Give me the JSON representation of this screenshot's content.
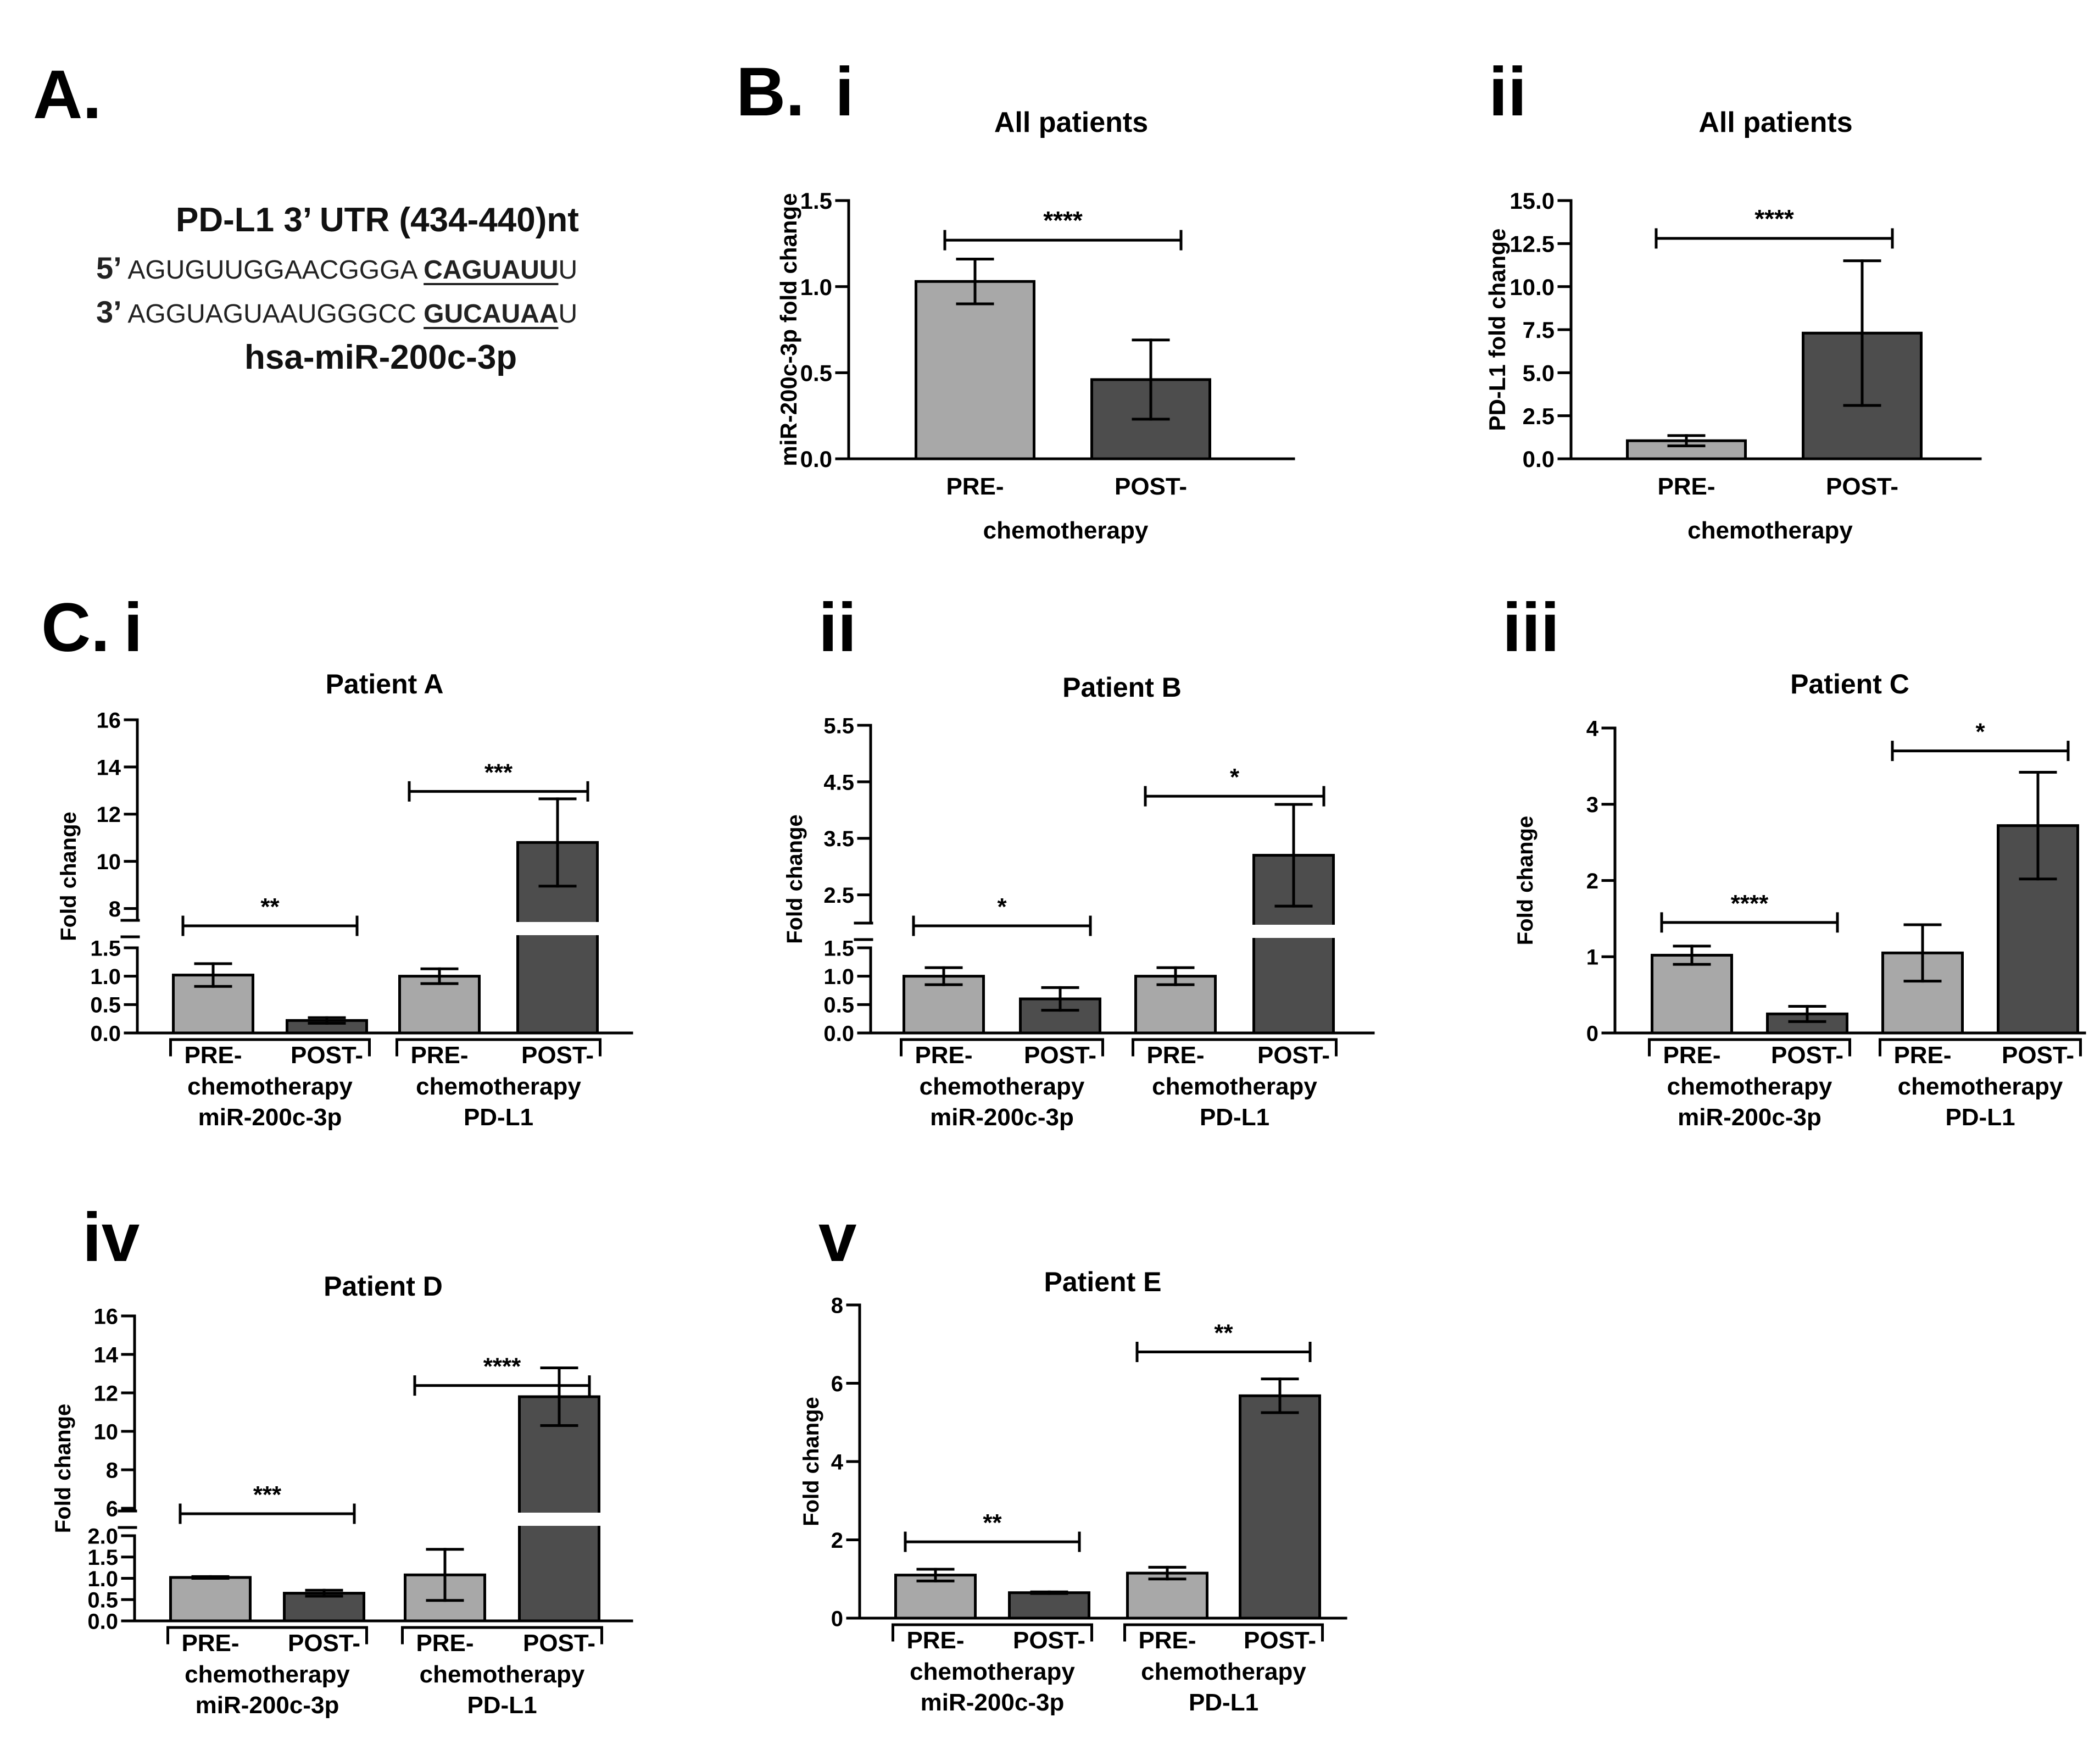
{
  "panel_letters": {
    "A": "A.",
    "B": "B.",
    "C": "C."
  },
  "sequence": {
    "title": "PD-L1 3’ UTR  (434-440)nt",
    "line1": {
      "prime": "5’",
      "seq": " AGUGUUGGAACGGGA ",
      "site": "CAGUAUU",
      "tail": "U"
    },
    "line2": {
      "prime": "3’",
      "seq": " AGGUAGUAAUGGGCC ",
      "site": "GUCAUAA",
      "tail": "U"
    },
    "mirna": "hsa-miR-200c-3p"
  },
  "colors": {
    "pre": "#a8a8a8",
    "post": "#4d4d4d",
    "axis": "#000000"
  },
  "chart_data": [
    {
      "id": "B-i",
      "type": "bar",
      "numeral": "i",
      "title": "All patients",
      "ylabel": "miR-200c-3p fold change",
      "xlabel": "chemotherapy",
      "categories": [
        "PRE-",
        "POST-"
      ],
      "values": [
        1.03,
        0.46
      ],
      "errors": [
        0.13,
        0.23
      ],
      "ylim": [
        0,
        1.5
      ],
      "ticks": [
        "0.0",
        "0.5",
        "1.0",
        "1.5"
      ],
      "significance": [
        {
          "from": 0,
          "to": 1,
          "label": "****",
          "at": 1.27
        }
      ]
    },
    {
      "id": "B-ii",
      "type": "bar",
      "numeral": "ii",
      "title": "All patients",
      "ylabel": "PD-L1 fold change",
      "xlabel": "chemotherapy",
      "categories": [
        "PRE-",
        "POST-"
      ],
      "values": [
        1.05,
        7.3
      ],
      "errors": [
        0.3,
        4.2
      ],
      "ylim": [
        0,
        15
      ],
      "ticks": [
        "0.0",
        "2.5",
        "5.0",
        "7.5",
        "10.0",
        "12.5",
        "15.0"
      ],
      "significance": [
        {
          "from": 0,
          "to": 1,
          "label": "****",
          "at": 12.8
        }
      ]
    },
    {
      "id": "C-i",
      "type": "bar",
      "numeral": "i",
      "title": "Patient  A",
      "ylabel": "Fold change",
      "categories": [
        "PRE-",
        "POST-",
        "PRE-",
        "POST-"
      ],
      "groups": [
        {
          "line1": "chemotherapy",
          "line2": "miR-200c-3p"
        },
        {
          "line1": "chemotherapy",
          "line2": "PD-L1"
        }
      ],
      "values": [
        1.02,
        0.22,
        1.0,
        10.8
      ],
      "errors": [
        0.2,
        0.05,
        0.13,
        1.85
      ],
      "lower_ticks": [
        "0.0",
        "0.5",
        "1.0",
        "1.5"
      ],
      "lower_max": 1.5,
      "upper_ticks": [
        "8",
        "10",
        "12",
        "14",
        "16"
      ],
      "upper_range": [
        7.5,
        16
      ],
      "significance": [
        {
          "from": 0,
          "to": 1,
          "label": "**",
          "at": 0.85
        },
        {
          "from": 2,
          "to": 3,
          "label": "***",
          "at": 0.55
        }
      ]
    },
    {
      "id": "C-ii",
      "type": "bar",
      "numeral": "ii",
      "title": "Patient  B",
      "ylabel": "Fold change",
      "categories": [
        "PRE-",
        "POST-",
        "PRE-",
        "POST-"
      ],
      "groups": [
        {
          "line1": "chemotherapy",
          "line2": "miR-200c-3p"
        },
        {
          "line1": "chemotherapy",
          "line2": "PD-L1"
        }
      ],
      "values": [
        1.0,
        0.6,
        1.0,
        3.2
      ],
      "errors": [
        0.15,
        0.2,
        0.15,
        0.9
      ],
      "lower_ticks": [
        "0.0",
        "0.5",
        "1.0",
        "1.5"
      ],
      "lower_max": 1.5,
      "upper_ticks": [
        "2.5",
        "3.5",
        "4.5",
        "5.5"
      ],
      "upper_range": [
        2.0,
        5.5
      ],
      "significance": [
        {
          "from": 0,
          "to": 1,
          "label": "*",
          "at": 0.85
        },
        {
          "from": 2,
          "to": 3,
          "label": "*",
          "at": 0.55
        }
      ]
    },
    {
      "id": "C-iii",
      "type": "bar",
      "numeral": "iii",
      "title": "Patient  C",
      "ylabel": "Fold change",
      "categories": [
        "PRE-",
        "POST-",
        "PRE-",
        "POST-"
      ],
      "groups": [
        {
          "line1": "chemotherapy",
          "line2": "miR-200c-3p"
        },
        {
          "line1": "chemotherapy",
          "line2": "PD-L1"
        }
      ],
      "values": [
        1.02,
        0.25,
        1.05,
        2.72
      ],
      "errors": [
        0.12,
        0.1,
        0.37,
        0.7
      ],
      "ylim": [
        0,
        4
      ],
      "ticks": [
        "0",
        "1",
        "2",
        "3",
        "4"
      ],
      "significance": [
        {
          "from": 0,
          "to": 1,
          "label": "****",
          "at": 1.45
        },
        {
          "from": 2,
          "to": 3,
          "label": "*",
          "at": 3.7
        }
      ]
    },
    {
      "id": "C-iv",
      "type": "bar",
      "numeral": "iv",
      "title": "Patient  D",
      "ylabel": "Fold change",
      "categories": [
        "PRE-",
        "POST-",
        "PRE-",
        "POST-"
      ],
      "groups": [
        {
          "line1": "chemotherapy",
          "line2": "miR-200c-3p"
        },
        {
          "line1": "chemotherapy",
          "line2": "PD-L1"
        }
      ],
      "values": [
        1.02,
        0.65,
        1.08,
        11.8
      ],
      "errors": [
        0.02,
        0.07,
        0.6,
        1.5
      ],
      "lower_ticks": [
        "0.0",
        "0.5",
        "1.0",
        "1.5",
        "2.0"
      ],
      "lower_max": 2.0,
      "upper_ticks": [
        "6",
        "8",
        "10",
        "12",
        "14",
        "16"
      ],
      "upper_range": [
        6,
        16
      ],
      "significance": [
        {
          "from": 0,
          "to": 1,
          "label": "***",
          "at": 0.8
        },
        {
          "from": 2,
          "to": 3,
          "label": "****",
          "at": 0.55
        }
      ]
    },
    {
      "id": "C-v",
      "type": "bar",
      "numeral": "v",
      "title": "Patient  E",
      "ylabel": "Fold change",
      "categories": [
        "PRE-",
        "POST-",
        "PRE-",
        "POST-"
      ],
      "groups": [
        {
          "line1": "chemotherapy",
          "line2": "miR-200c-3p"
        },
        {
          "line1": "chemotherapy",
          "line2": "PD-L1"
        }
      ],
      "values": [
        1.1,
        0.65,
        1.15,
        5.68
      ],
      "errors": [
        0.15,
        0.02,
        0.15,
        0.43
      ],
      "ylim": [
        0,
        8
      ],
      "ticks": [
        "0",
        "2",
        "4",
        "6",
        "8"
      ],
      "significance": [
        {
          "from": 0,
          "to": 1,
          "label": "**",
          "at": 1.95
        },
        {
          "from": 2,
          "to": 3,
          "label": "**",
          "at": 6.8
        }
      ]
    }
  ]
}
